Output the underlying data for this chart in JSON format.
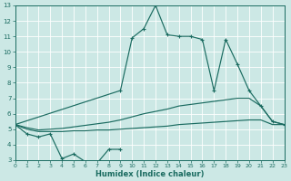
{
  "background_color": "#cce8e5",
  "grid_color": "#b0d8d5",
  "line_color": "#1a6b60",
  "xlabel": "Humidex (Indice chaleur)",
  "xlim": [
    0,
    23
  ],
  "ylim": [
    3,
    13
  ],
  "xticks": [
    0,
    1,
    2,
    3,
    4,
    5,
    6,
    7,
    8,
    9,
    10,
    11,
    12,
    13,
    14,
    15,
    16,
    17,
    18,
    19,
    20,
    21,
    22,
    23
  ],
  "yticks": [
    3,
    4,
    5,
    6,
    7,
    8,
    9,
    10,
    11,
    12,
    13
  ],
  "line_min_x": [
    0,
    1,
    2,
    3,
    4,
    5,
    6,
    7,
    8,
    9
  ],
  "line_min_y": [
    5.3,
    4.7,
    4.5,
    4.7,
    3.1,
    3.4,
    2.9,
    2.8,
    3.7,
    3.7
  ],
  "line_flat1_x": [
    0,
    1,
    2,
    3,
    4,
    5,
    6,
    7,
    8,
    9,
    10,
    11,
    12,
    13,
    14,
    15,
    16,
    17,
    18,
    19,
    20,
    21,
    22,
    23
  ],
  "line_flat1_y": [
    5.3,
    5.0,
    4.85,
    4.85,
    4.85,
    4.9,
    4.9,
    4.95,
    4.95,
    5.0,
    5.05,
    5.1,
    5.15,
    5.2,
    5.3,
    5.35,
    5.4,
    5.45,
    5.5,
    5.55,
    5.6,
    5.6,
    5.3,
    5.3
  ],
  "line_flat2_x": [
    0,
    1,
    2,
    3,
    4,
    5,
    6,
    7,
    8,
    9,
    10,
    11,
    12,
    13,
    14,
    15,
    16,
    17,
    18,
    19,
    20,
    21,
    22,
    23
  ],
  "line_flat2_y": [
    5.3,
    5.1,
    4.95,
    5.0,
    5.05,
    5.15,
    5.25,
    5.35,
    5.45,
    5.6,
    5.8,
    6.0,
    6.15,
    6.3,
    6.5,
    6.6,
    6.7,
    6.8,
    6.9,
    7.0,
    7.0,
    6.5,
    5.5,
    5.3
  ],
  "line_peak_x": [
    0,
    9,
    10,
    11,
    12,
    13,
    14,
    15,
    16,
    17,
    18,
    19,
    20,
    21,
    22,
    23
  ],
  "line_peak_y": [
    5.3,
    7.5,
    10.9,
    11.5,
    13.0,
    11.1,
    11.0,
    11.0,
    10.8,
    7.5,
    10.8,
    9.2,
    7.5,
    6.5,
    5.5,
    5.3
  ]
}
